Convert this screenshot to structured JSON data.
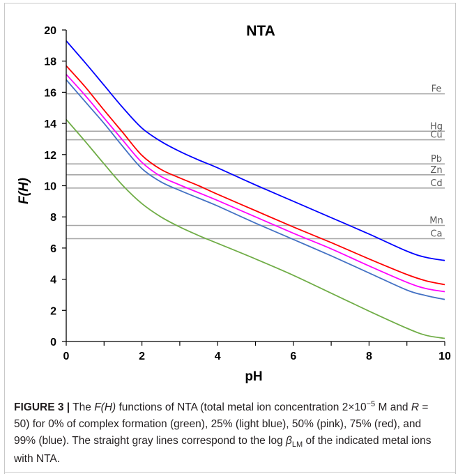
{
  "chart_data": {
    "type": "line",
    "title": "NTA",
    "xlabel": "pH",
    "ylabel": "F(H)",
    "xlim": [
      0,
      10
    ],
    "ylim": [
      0,
      20
    ],
    "xticks": [
      0,
      2,
      4,
      6,
      8,
      10
    ],
    "yticks": [
      0,
      2,
      4,
      6,
      8,
      10,
      12,
      14,
      16,
      18,
      20
    ],
    "grid": false,
    "legend": "none",
    "reference_lines": [
      {
        "label": "Fe",
        "y": 15.9
      },
      {
        "label": "Hg",
        "y": 13.5
      },
      {
        "label": "Cu",
        "y": 12.95
      },
      {
        "label": "Pb",
        "y": 11.4
      },
      {
        "label": "Zn",
        "y": 10.7
      },
      {
        "label": "Cd",
        "y": 9.85
      },
      {
        "label": "Mn",
        "y": 7.45
      },
      {
        "label": "Ca",
        "y": 6.6
      }
    ],
    "series": [
      {
        "color": "#70ad47",
        "x": [
          0,
          0.5,
          1,
          1.5,
          2,
          2.5,
          3,
          3.5,
          4,
          5,
          6,
          7,
          8,
          9,
          9.5,
          10
        ],
        "y": [
          14.25,
          12.85,
          11.4,
          10.0,
          8.85,
          8.0,
          7.35,
          6.8,
          6.3,
          5.3,
          4.25,
          3.1,
          1.95,
          0.85,
          0.4,
          0.2
        ]
      },
      {
        "color": "#4472c4",
        "x": [
          0,
          0.5,
          1,
          1.5,
          2,
          2.5,
          3,
          3.5,
          4,
          5,
          6,
          7,
          8,
          9,
          9.5,
          10
        ],
        "y": [
          16.8,
          15.4,
          14.0,
          12.5,
          11.1,
          10.25,
          9.7,
          9.2,
          8.7,
          7.6,
          6.55,
          5.5,
          4.4,
          3.3,
          2.95,
          2.7
        ]
      },
      {
        "color": "#ff00ff",
        "x": [
          0,
          0.5,
          1,
          1.5,
          2,
          2.5,
          3,
          3.5,
          4,
          5,
          6,
          7,
          8,
          9,
          9.5,
          10
        ],
        "y": [
          17.15,
          15.8,
          14.35,
          12.9,
          11.5,
          10.6,
          10.05,
          9.55,
          9.05,
          8.0,
          6.95,
          5.95,
          4.85,
          3.8,
          3.4,
          3.2
        ]
      },
      {
        "color": "#ff0000",
        "x": [
          0,
          0.5,
          1,
          1.5,
          2,
          2.5,
          3,
          3.5,
          4,
          5,
          6,
          7,
          8,
          9,
          9.5,
          10
        ],
        "y": [
          17.7,
          16.35,
          14.85,
          13.4,
          11.95,
          11.05,
          10.5,
          10.0,
          9.45,
          8.4,
          7.35,
          6.35,
          5.3,
          4.3,
          3.9,
          3.65
        ]
      },
      {
        "color": "#0000ff",
        "x": [
          0,
          0.5,
          1,
          1.5,
          2,
          2.5,
          3,
          3.5,
          4,
          5,
          6,
          7,
          8,
          9,
          9.5,
          10
        ],
        "y": [
          19.3,
          17.9,
          16.45,
          15.0,
          13.7,
          12.85,
          12.2,
          11.65,
          11.15,
          10.05,
          9.0,
          7.95,
          6.9,
          5.8,
          5.4,
          5.2
        ]
      }
    ]
  },
  "caption": {
    "label": "FIGURE 3 |",
    "text_1": " The ",
    "fh": "F(H)",
    "text_2": " functions of NTA (total metal ion concentration 2×10",
    "exp": "−5",
    "text_3": " M and ",
    "r": "R",
    "text_4": " = 50) for 0% of complex formation (green), 25% (light blue), 50% (pink), 75% (red), and 99% (blue). The straight gray lines correspond to the log ",
    "beta": "β",
    "beta_sub": "LM",
    "text_5": " of the indicated metal ions with NTA."
  }
}
